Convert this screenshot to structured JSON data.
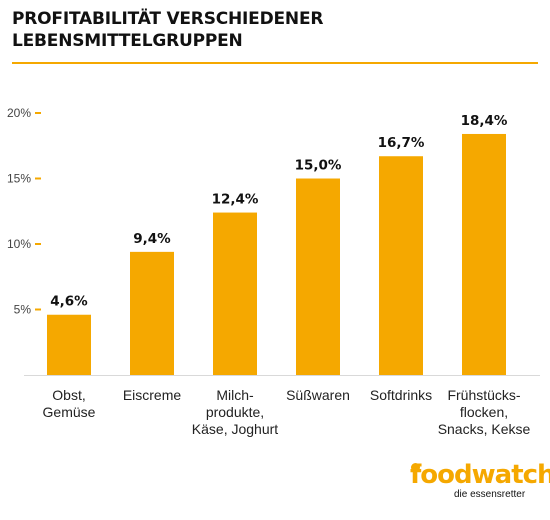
{
  "header": {
    "title": "PROFITABILITÄT VERSCHIEDENER LEBENSMITTELGRUPPEN"
  },
  "logo": {
    "word": "foodwatch",
    "tagline": "die essensretter"
  },
  "colors": {
    "bar": "#f5a800",
    "accent": "#f5a800"
  },
  "chart_data": {
    "type": "bar",
    "title": "PROFITABILITÄT VERSCHIEDENER LEBENSMITTELGRUPPEN",
    "xlabel": "",
    "ylabel": "",
    "ylim": [
      0,
      20
    ],
    "yticks": [
      {
        "value": 5,
        "label": "5%"
      },
      {
        "value": 10,
        "label": "10%"
      },
      {
        "value": 15,
        "label": "15%"
      },
      {
        "value": 20,
        "label": "20%"
      }
    ],
    "categories": [
      [
        "Obst,",
        "Gemüse"
      ],
      [
        "Eiscreme"
      ],
      [
        "Milch-",
        "produkte,",
        "Käse, Joghurt"
      ],
      [
        "Süßwaren"
      ],
      [
        "Softdrinks"
      ],
      [
        "Frühstücks-",
        "flocken,",
        "Snacks, Kekse"
      ]
    ],
    "values": [
      4.6,
      9.4,
      12.4,
      15.0,
      16.7,
      18.4
    ],
    "data_labels": [
      "4,6%",
      "9,4%",
      "12,4%",
      "15,0%",
      "16,7%",
      "18,4%"
    ],
    "grid": false,
    "legend": "none"
  }
}
